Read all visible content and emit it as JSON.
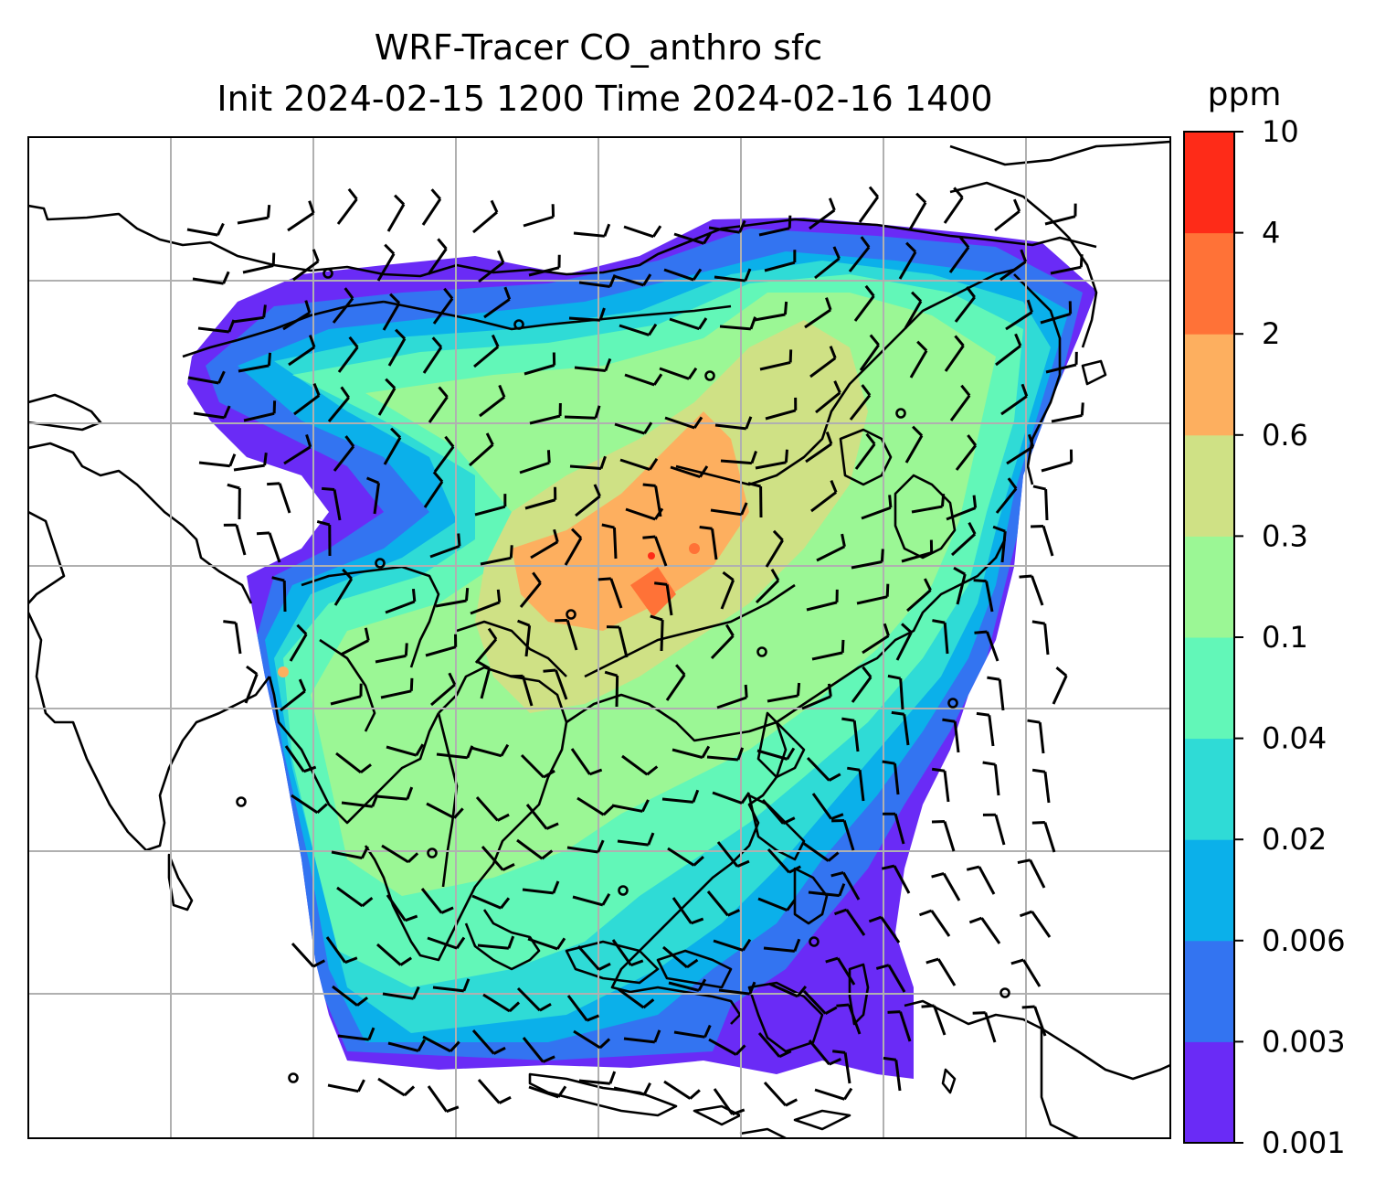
{
  "title": {
    "line1": "WRF-Tracer CO_anthro sfc",
    "line2": "Init 2024-02-15 1200 Time 2024-02-16 1400"
  },
  "colorbar": {
    "unit": "ppm",
    "ticks": [
      "0.001",
      "0.003",
      "0.006",
      "0.02",
      "0.04",
      "0.1",
      "0.3",
      "0.6",
      "2",
      "4",
      "10"
    ],
    "colors": [
      "#6a2bf6",
      "#3374f1",
      "#0bb0ea",
      "#2fdbd6",
      "#62f7b8",
      "#9bf795",
      "#cfe185",
      "#fdaf5f",
      "#ff7237",
      "#fe2b18"
    ]
  },
  "map": {
    "variable": "CO_anthro",
    "level": "sfc",
    "gridlines": true,
    "overlay": "wind barbs",
    "calm_marker": "open circle"
  },
  "chart_data": {
    "type": "heatmap",
    "title": "WRF-Tracer CO_anthro sfc Init 2024-02-15 1200 Time 2024-02-16 1400",
    "colorbar_label": "ppm",
    "colorbar_levels": [
      0.001,
      0.003,
      0.006,
      0.02,
      0.04,
      0.1,
      0.3,
      0.6,
      2,
      4,
      10
    ],
    "grid": true
  }
}
